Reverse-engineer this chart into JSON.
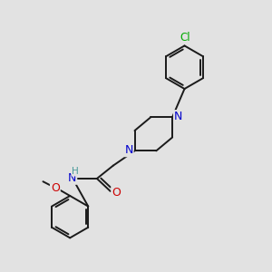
{
  "bg_color": "#e2e2e2",
  "line_color": "#1a1a1a",
  "N_color": "#0000cc",
  "O_color": "#cc0000",
  "Cl_color": "#00aa00",
  "H_color": "#4a9a9a",
  "lw": 1.4,
  "figsize": [
    3.0,
    3.0
  ],
  "dpi": 100,
  "xlim": [
    0,
    10
  ],
  "ylim": [
    0,
    10
  ]
}
